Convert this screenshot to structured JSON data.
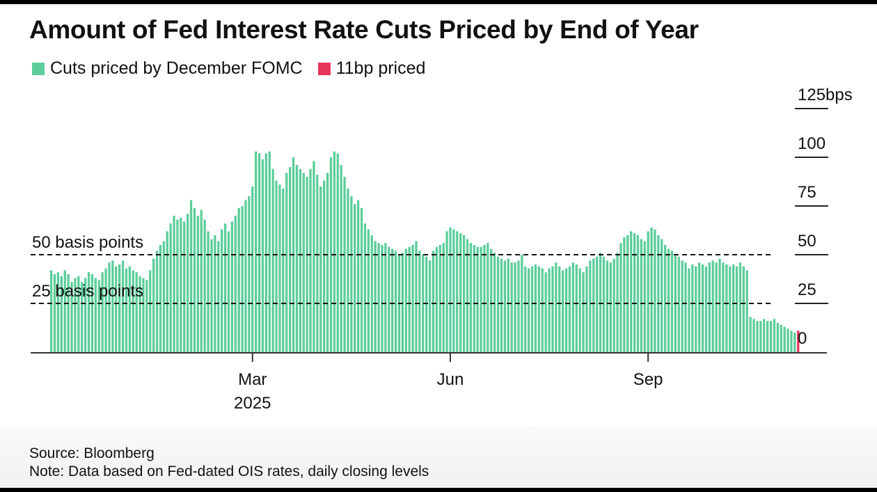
{
  "title": "Amount of Fed Interest Rate Cuts Priced by End of Year",
  "legend": [
    {
      "label": "Cuts priced by December FOMC",
      "color": "#5ccd99"
    },
    {
      "label": "11bp priced",
      "color": "#e8355a"
    }
  ],
  "source": "Source: Bloomberg",
  "note": "Note: Data based on Fed-dated OIS rates, daily closing levels",
  "chart_data": {
    "type": "bar",
    "title": "Amount of Fed Interest Rate Cuts Priced by End of Year",
    "xlabel": "",
    "ylabel": "",
    "ylim": [
      0,
      125
    ],
    "y_ticks": [
      {
        "value": 125,
        "label": "125bps"
      },
      {
        "value": 100,
        "label": "100"
      },
      {
        "value": 75,
        "label": "75"
      },
      {
        "value": 50,
        "label": "50"
      },
      {
        "value": 25,
        "label": "25"
      },
      {
        "value": 0,
        "label": "0"
      }
    ],
    "x_ticks": [
      {
        "label": "Mar",
        "sublabel": "2025",
        "bar_index": 59
      },
      {
        "label": "Jun",
        "sublabel": "",
        "bar_index": 117
      },
      {
        "label": "Sep",
        "sublabel": "",
        "bar_index": 175
      }
    ],
    "reference_lines": [
      {
        "value": 50,
        "label": "50 basis points"
      },
      {
        "value": 25,
        "label": "25 basis points"
      }
    ],
    "grid": false,
    "legend_position": "top-left",
    "series": [
      {
        "name": "Cuts priced by December FOMC",
        "color": "#5ccd99",
        "values": [
          42,
          40,
          41,
          39,
          42,
          40,
          36,
          38,
          39,
          36,
          38,
          41,
          40,
          38,
          37,
          41,
          43,
          46,
          47,
          44,
          45,
          47,
          43,
          44,
          42,
          41,
          39,
          38,
          37,
          42,
          48,
          52,
          55,
          57,
          62,
          66,
          70,
          68,
          69,
          67,
          71,
          78,
          74,
          70,
          73,
          68,
          62,
          58,
          60,
          57,
          63,
          66,
          62,
          67,
          70,
          74,
          75,
          78,
          80,
          85,
          103,
          102,
          99,
          102,
          103,
          94,
          88,
          86,
          84,
          92,
          95,
          100,
          96,
          94,
          92,
          90,
          94,
          98,
          91,
          85,
          88,
          92,
          100,
          103,
          102,
          96,
          90,
          84,
          80,
          76,
          78,
          74,
          66,
          63,
          60,
          57,
          56,
          55,
          56,
          54,
          53,
          52,
          50,
          51,
          53,
          54,
          55,
          57,
          52,
          50,
          49,
          47,
          52,
          54,
          55,
          56,
          62,
          64,
          63,
          62,
          61,
          60,
          58,
          56,
          55,
          54,
          54,
          55,
          56,
          53,
          51,
          49,
          48,
          47,
          48,
          46,
          46,
          47,
          50,
          44,
          43,
          44,
          45,
          44,
          43,
          41,
          43,
          44,
          46,
          44,
          42,
          43,
          44,
          46,
          45,
          43,
          41,
          44,
          47,
          48,
          49,
          51,
          49,
          47,
          46,
          48,
          51,
          56,
          59,
          60,
          62,
          61,
          60,
          58,
          57,
          62,
          64,
          63,
          60,
          58,
          55,
          53,
          52,
          50,
          49,
          47,
          46,
          43,
          45,
          44,
          46,
          45,
          44,
          46,
          47,
          46,
          48,
          46,
          45,
          44,
          45,
          44,
          46,
          44,
          42,
          18,
          17,
          16,
          16,
          17,
          16,
          16,
          17,
          15,
          14,
          13,
          12,
          11,
          10
        ]
      },
      {
        "name": "11bp priced",
        "color": "#e8355a",
        "values": [
          11
        ]
      }
    ]
  }
}
